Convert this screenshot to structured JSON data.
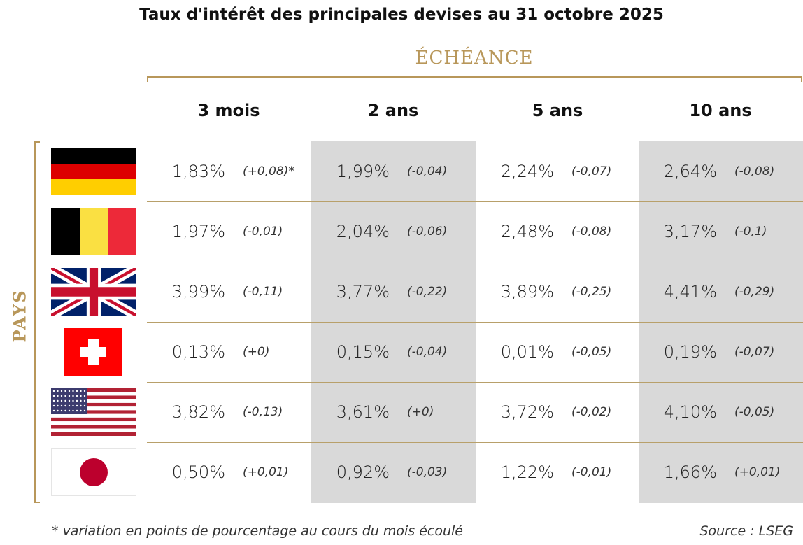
{
  "title": "Taux d'intérêt des principales devises au 31 octobre 2025",
  "echeance_label": "ÉCHÉANCE",
  "pays_label": "PAYS",
  "footnote": "* variation en points de pourcentage au cours du mois écoulé",
  "source": "Source : LSEG",
  "colors": {
    "gold": "#b8975a",
    "shade": "#d9d9d9"
  },
  "chart_data": {
    "type": "table",
    "columns": [
      "3 mois",
      "2 ans",
      "5 ans",
      "10 ans"
    ],
    "rows": [
      {
        "country": "germany-flag",
        "values": [
          "1,83%",
          "1,99%",
          "2,24%",
          "2,64%"
        ],
        "changes": [
          "(+0,08)*",
          "(-0,04)",
          "(-0,07)",
          "(-0,08)"
        ]
      },
      {
        "country": "belgium-flag",
        "values": [
          "1,97%",
          "2,04%",
          "2,48%",
          "3,17%"
        ],
        "changes": [
          "(-0,01)",
          "(-0,06)",
          "(-0,08)",
          "(-0,1)"
        ]
      },
      {
        "country": "uk-flag",
        "values": [
          "3,99%",
          "3,77%",
          "3,89%",
          "4,41%"
        ],
        "changes": [
          "(-0,11)",
          "(-0,22)",
          "(-0,25)",
          "(-0,29)"
        ]
      },
      {
        "country": "switzerland-flag",
        "values": [
          "-0,13%",
          "-0,15%",
          "0,01%",
          "0,19%"
        ],
        "changes": [
          "(+0)",
          "(-0,04)",
          "(-0,05)",
          "(-0,07)"
        ]
      },
      {
        "country": "usa-flag",
        "values": [
          "3,82%",
          "3,61%",
          "3,72%",
          "4,10%"
        ],
        "changes": [
          "(-0,13)",
          "(+0)",
          "(-0,02)",
          "(-0,05)"
        ]
      },
      {
        "country": "japan-flag",
        "values": [
          "0,50%",
          "0,92%",
          "1,22%",
          "1,66%"
        ],
        "changes": [
          "(+0,01)",
          "(-0,03)",
          "(-0,01)",
          "(+0,01)"
        ]
      }
    ]
  }
}
